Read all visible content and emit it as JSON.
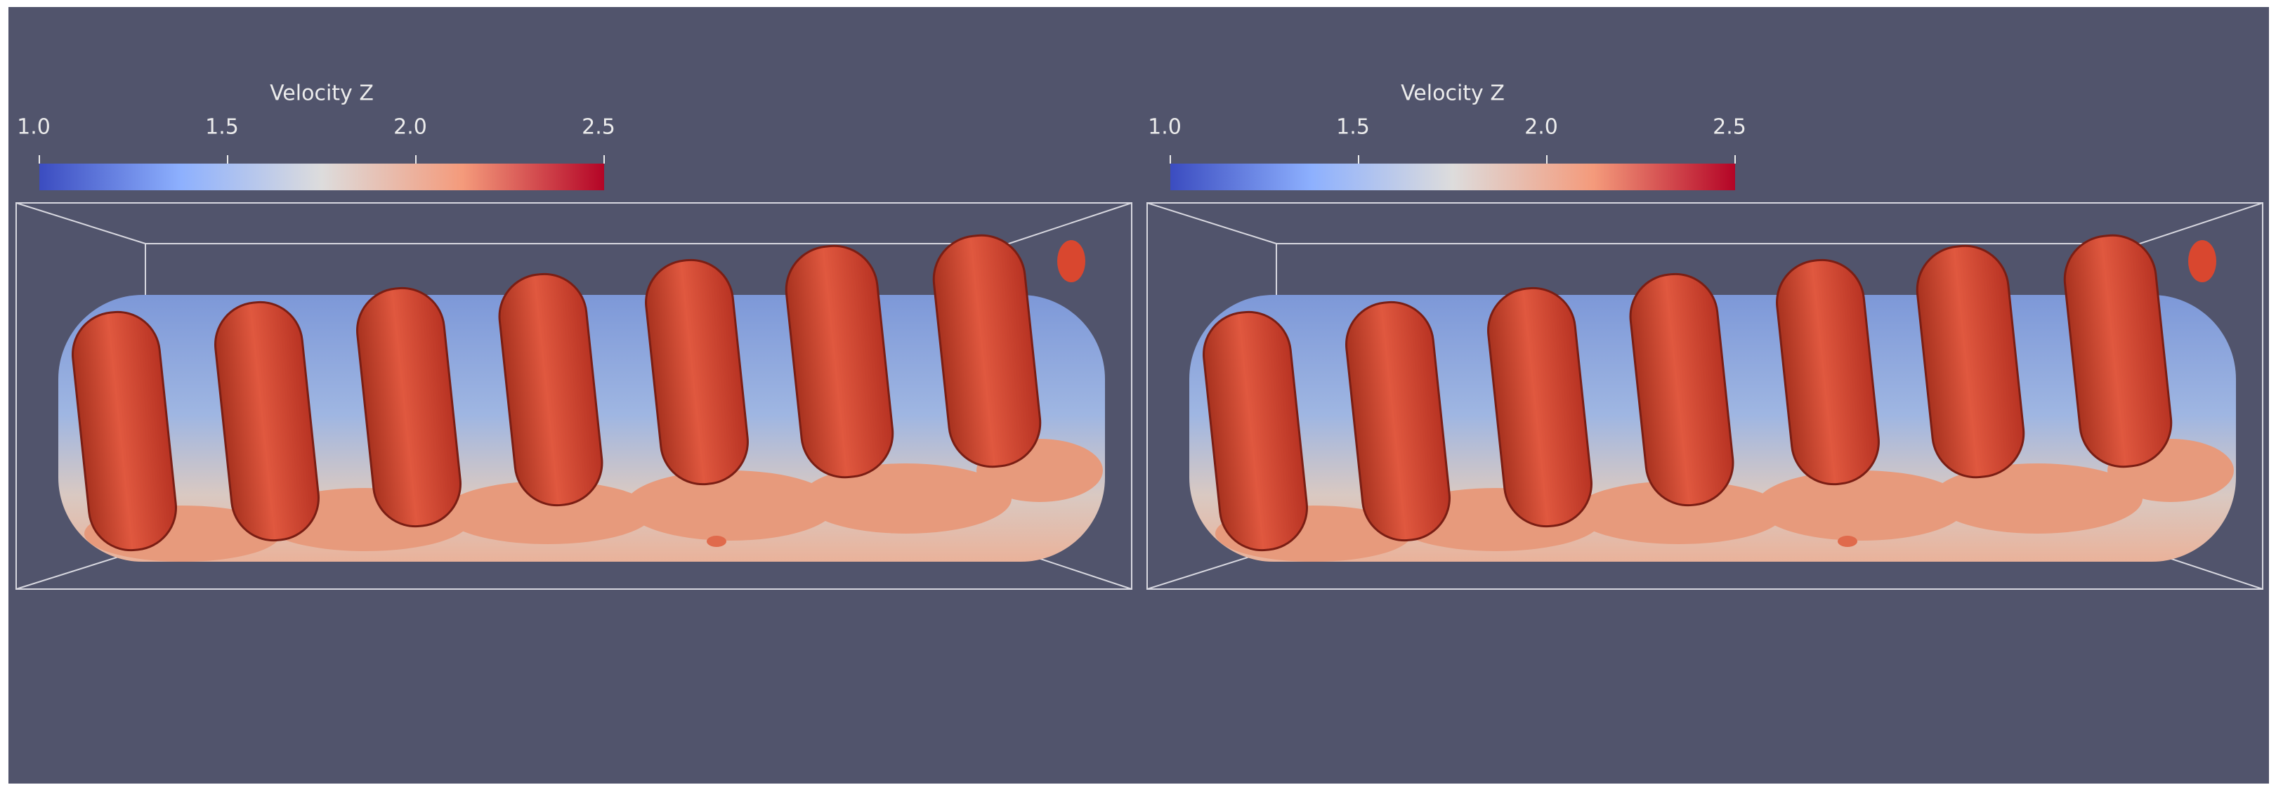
{
  "panels": [
    {
      "colorbar": {
        "title": "Velocity Z",
        "range": [
          1,
          2.5
        ],
        "ticks": [
          {
            "value": 1,
            "label": "1.0"
          },
          {
            "value": 1.5,
            "label": "1.5"
          },
          {
            "value": 2,
            "label": "2.0"
          },
          {
            "value": 2.5,
            "label": "2.5"
          }
        ]
      }
    },
    {
      "colorbar": {
        "title": "Velocity Z",
        "range": [
          1,
          2.5
        ],
        "ticks": [
          {
            "value": 1,
            "label": "1.0"
          },
          {
            "value": 1.5,
            "label": "1.5"
          },
          {
            "value": 2,
            "label": "2.0"
          },
          {
            "value": 2.5,
            "label": "2.5"
          }
        ]
      }
    }
  ]
}
